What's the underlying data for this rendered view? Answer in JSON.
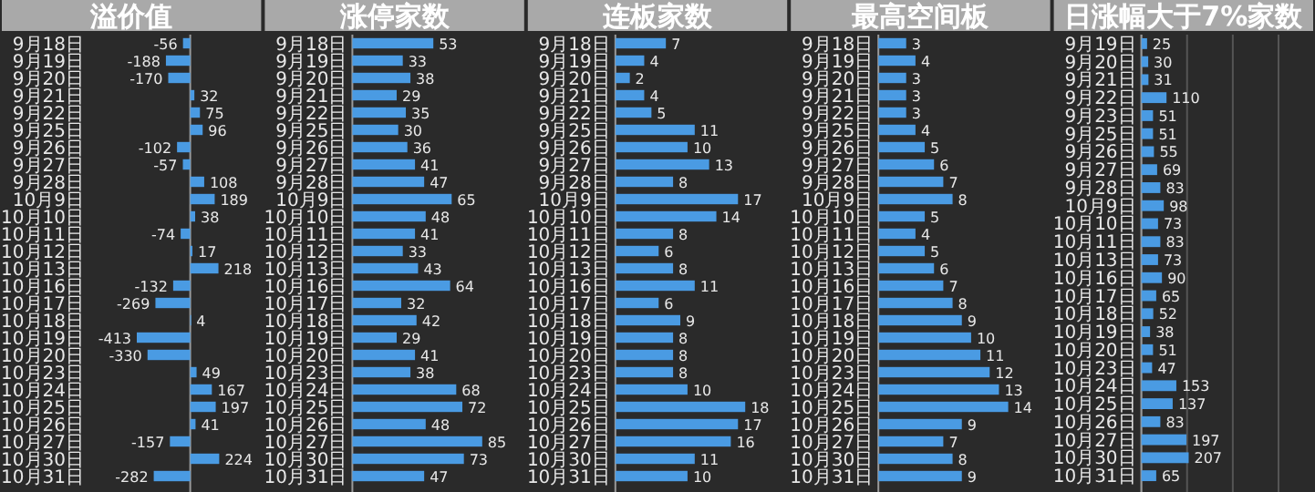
{
  "chart_data": [
    {
      "type": "bar",
      "orientation": "horizontal",
      "title": "溢价值",
      "categories": [
        "9月18日",
        "9月19日",
        "9月20日",
        "9月21日",
        "9月22日",
        "9月25日",
        "9月26日",
        "9月27日",
        "9月28日",
        "10月9日",
        "10月10日",
        "10月11日",
        "10月12日",
        "10月13日",
        "10月16日",
        "10月17日",
        "10月18日",
        "10月19日",
        "10月20日",
        "10月23日",
        "10月24日",
        "10月25日",
        "10月26日",
        "10月27日",
        "10月30日",
        "10月31日"
      ],
      "values": [
        -56,
        -188,
        -170,
        32,
        75,
        96,
        -102,
        -57,
        108,
        189,
        38,
        -74,
        17,
        218,
        -132,
        -269,
        4,
        -413,
        -330,
        49,
        167,
        197,
        41,
        -157,
        224,
        -282
      ],
      "color": "#4a9be3",
      "data_labels": true,
      "tick_labels": "y"
    },
    {
      "type": "bar",
      "orientation": "horizontal",
      "title": "涨停家数",
      "categories": [
        "9月18日",
        "9月19日",
        "9月20日",
        "9月21日",
        "9月22日",
        "9月25日",
        "9月26日",
        "9月27日",
        "9月28日",
        "10月9日",
        "10月10日",
        "10月11日",
        "10月12日",
        "10月13日",
        "10月16日",
        "10月17日",
        "10月18日",
        "10月19日",
        "10月20日",
        "10月23日",
        "10月24日",
        "10月25日",
        "10月26日",
        "10月27日",
        "10月30日",
        "10月31日"
      ],
      "values": [
        53,
        33,
        38,
        29,
        35,
        30,
        36,
        41,
        47,
        65,
        48,
        41,
        33,
        43,
        64,
        32,
        42,
        29,
        41,
        38,
        68,
        72,
        48,
        85,
        73,
        47
      ],
      "color": "#4a9be3",
      "data_labels": true,
      "tick_labels": "y"
    },
    {
      "type": "bar",
      "orientation": "horizontal",
      "title": "连板家数",
      "categories": [
        "9月18日",
        "9月19日",
        "9月20日",
        "9月21日",
        "9月22日",
        "9月25日",
        "9月26日",
        "9月27日",
        "9月28日",
        "10月9日",
        "10月10日",
        "10月11日",
        "10月12日",
        "10月13日",
        "10月16日",
        "10月17日",
        "10月18日",
        "10月19日",
        "10月20日",
        "10月23日",
        "10月24日",
        "10月25日",
        "10月26日",
        "10月27日",
        "10月30日",
        "10月31日"
      ],
      "values": [
        7,
        4,
        2,
        4,
        5,
        11,
        10,
        13,
        8,
        17,
        14,
        8,
        6,
        8,
        11,
        6,
        9,
        8,
        8,
        8,
        10,
        18,
        17,
        16,
        11,
        10
      ],
      "color": "#4a9be3",
      "data_labels": true,
      "tick_labels": "y"
    },
    {
      "type": "bar",
      "orientation": "horizontal",
      "title": "最高空间板",
      "categories": [
        "9月18日",
        "9月19日",
        "9月20日",
        "9月21日",
        "9月22日",
        "9月25日",
        "9月26日",
        "9月27日",
        "9月28日",
        "10月9日",
        "10月10日",
        "10月11日",
        "10月12日",
        "10月13日",
        "10月16日",
        "10月17日",
        "10月18日",
        "10月19日",
        "10月20日",
        "10月23日",
        "10月24日",
        "10月25日",
        "10月26日",
        "10月27日",
        "10月30日",
        "10月31日"
      ],
      "values": [
        3,
        4,
        3,
        3,
        3,
        4,
        5,
        6,
        7,
        8,
        5,
        4,
        5,
        6,
        7,
        8,
        9,
        10,
        11,
        12,
        13,
        14,
        9,
        7,
        8,
        9
      ],
      "color": "#4a9be3",
      "data_labels": true,
      "tick_labels": "y"
    },
    {
      "type": "bar",
      "orientation": "horizontal",
      "title": "日涨幅大于7%家数",
      "categories": [
        "9月19日",
        "9月20日",
        "9月21日",
        "9月22日",
        "9月23日",
        "9月25日",
        "9月26日",
        "9月27日",
        "9月28日",
        "10月9日",
        "10月10日",
        "10月11日",
        "10月13日",
        "10月16日",
        "10月17日",
        "10月18日",
        "10月19日",
        "10月20日",
        "10月23日",
        "10月24日",
        "10月25日",
        "10月26日",
        "10月27日",
        "10月30日",
        "10月31日"
      ],
      "values": [
        25,
        30,
        31,
        110,
        51,
        51,
        55,
        69,
        83,
        98,
        73,
        83,
        73,
        90,
        65,
        52,
        38,
        51,
        47,
        153,
        137,
        83,
        197,
        207,
        65
      ],
      "color": "#4a9be3",
      "xlim": [
        0,
        600
      ],
      "xticks": [
        {
          "value": 0,
          "label": null
        },
        {
          "value": 200,
          "label": null
        },
        {
          "value": 400,
          "label": null
        },
        {
          "value": 600,
          "label": null
        }
      ],
      "grid": "x",
      "data_labels": true,
      "tick_labels": "y"
    }
  ]
}
